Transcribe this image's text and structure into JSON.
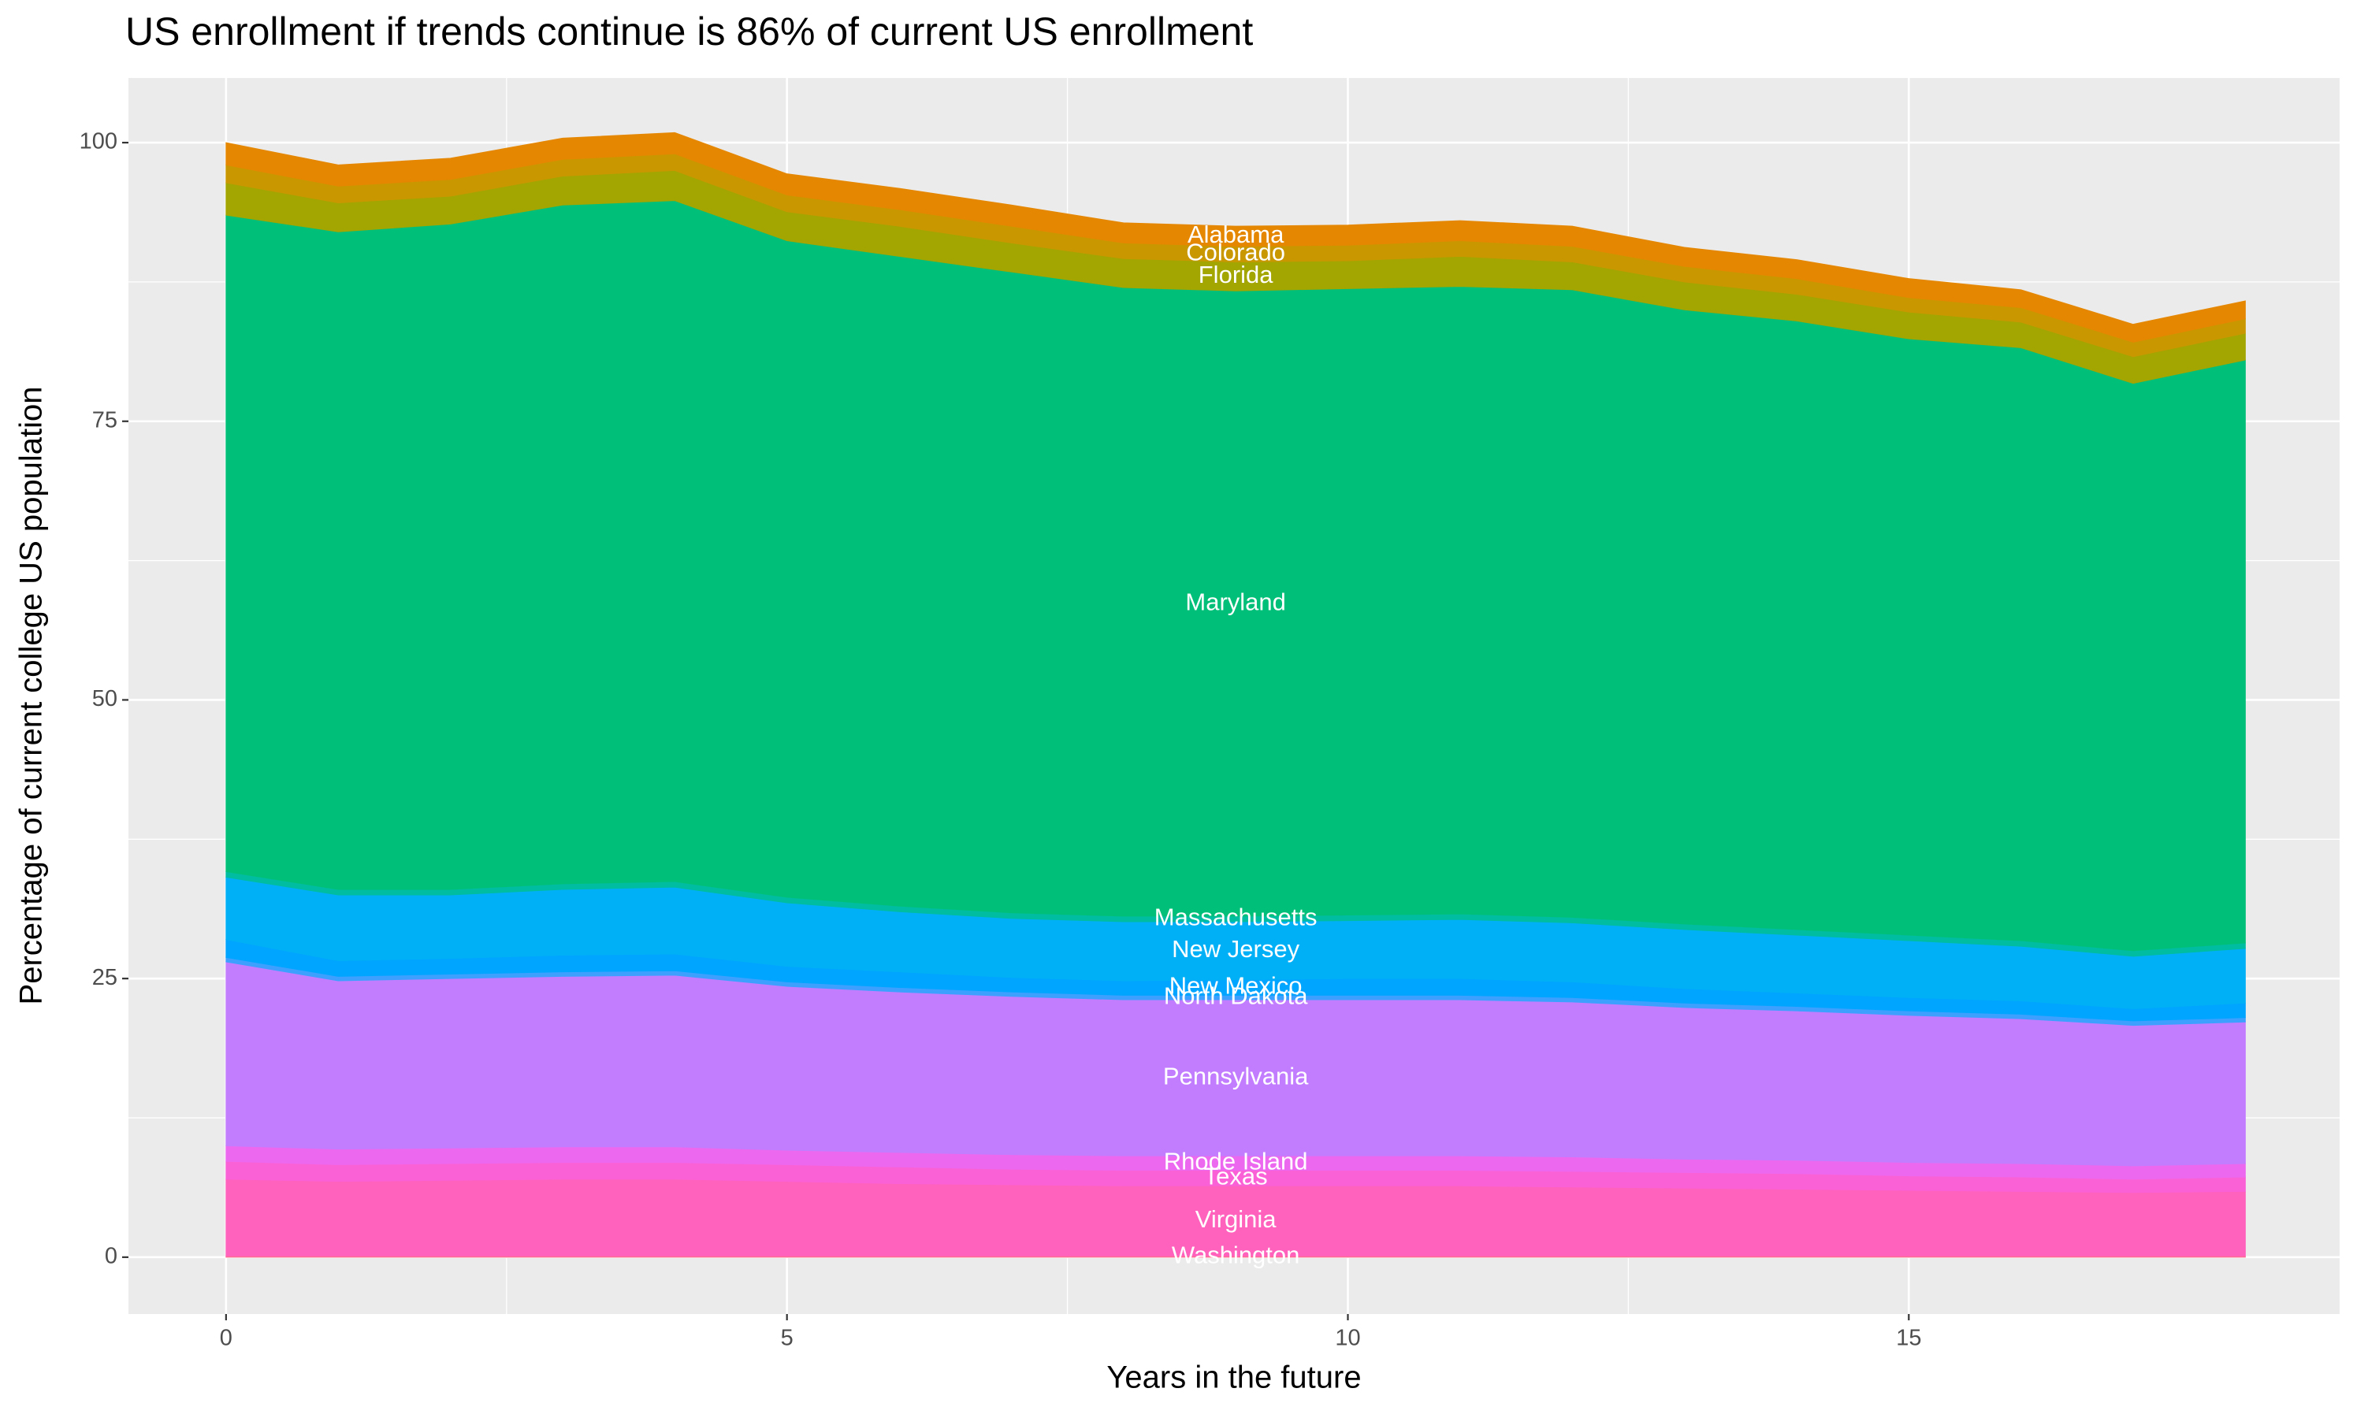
{
  "chart_data": {
    "type": "stacked-area",
    "title": "US enrollment if trends continue is 86% of current US enrollment",
    "x_label": "Years in the future",
    "y_label": "Percentage of current college US population",
    "x": [
      0,
      1,
      2,
      3,
      4,
      5,
      6,
      7,
      8,
      9,
      10,
      11,
      12,
      13,
      14,
      15,
      16,
      17,
      18
    ],
    "xlim": [
      -0.87,
      18.84
    ],
    "ylim": [
      -5.1,
      105.8
    ],
    "xticks": [
      0,
      5,
      10,
      15
    ],
    "yticks": [
      0,
      25,
      50,
      75,
      100
    ],
    "grid": true,
    "label_x": 9,
    "series": [
      {
        "name": "Alabama",
        "color": "#E58700",
        "values": [
          2.0,
          1.9,
          1.9,
          1.9,
          1.9,
          1.9,
          1.9,
          1.9,
          1.8,
          1.8,
          1.8,
          1.8,
          1.8,
          1.7,
          1.7,
          1.7,
          1.6,
          1.6,
          1.6
        ]
      },
      {
        "name": "Colorado",
        "color": "#C99800",
        "values": [
          1.6,
          1.5,
          1.5,
          1.5,
          1.5,
          1.5,
          1.5,
          1.5,
          1.4,
          1.4,
          1.4,
          1.4,
          1.4,
          1.4,
          1.4,
          1.3,
          1.3,
          1.3,
          1.3
        ]
      },
      {
        "name": "Florida",
        "color": "#A3A500",
        "values": [
          2.9,
          2.6,
          2.5,
          2.6,
          2.7,
          2.6,
          2.7,
          2.6,
          2.6,
          2.6,
          2.5,
          2.7,
          2.5,
          2.5,
          2.4,
          2.4,
          2.3,
          2.4,
          2.4
        ]
      },
      {
        "name": "Maryland",
        "color": "#00C079",
        "values": [
          58.9,
          59.0,
          59.7,
          60.9,
          61.1,
          58.9,
          58.3,
          57.5,
          56.4,
          56.1,
          56.2,
          56.3,
          56.3,
          55.1,
          54.6,
          53.5,
          53.2,
          50.9,
          52.3
        ]
      },
      {
        "name": "Massachusetts",
        "color": "#00BCA0",
        "values": [
          0.5,
          0.5,
          0.5,
          0.5,
          0.5,
          0.5,
          0.5,
          0.5,
          0.5,
          0.5,
          0.5,
          0.5,
          0.5,
          0.5,
          0.5,
          0.5,
          0.5,
          0.5,
          0.5
        ]
      },
      {
        "name": "New Jersey",
        "color": "#00B0F6",
        "values": [
          5.6,
          5.9,
          5.7,
          5.9,
          6.0,
          5.7,
          5.4,
          5.3,
          5.3,
          5.2,
          5.2,
          5.3,
          5.3,
          5.3,
          5.2,
          5.1,
          4.9,
          4.7,
          4.9
        ]
      },
      {
        "name": "New Mexico",
        "color": "#00A5FF",
        "values": [
          1.6,
          1.4,
          1.4,
          1.5,
          1.5,
          1.4,
          1.4,
          1.3,
          1.3,
          1.4,
          1.5,
          1.5,
          1.4,
          1.3,
          1.2,
          1.2,
          1.2,
          1.1,
          1.3
        ]
      },
      {
        "name": "North Dakota",
        "color": "#3DA0FF",
        "values": [
          0.4,
          0.4,
          0.4,
          0.4,
          0.4,
          0.4,
          0.4,
          0.4,
          0.4,
          0.4,
          0.4,
          0.4,
          0.4,
          0.4,
          0.4,
          0.4,
          0.4,
          0.4,
          0.4
        ]
      },
      {
        "name": "Pennsylvania",
        "color": "#C27DFF",
        "values": [
          16.5,
          15.1,
          15.2,
          15.3,
          15.4,
          14.7,
          14.4,
          14.2,
          14.0,
          14.0,
          14.0,
          14.0,
          13.9,
          13.6,
          13.4,
          13.2,
          13.0,
          12.6,
          12.7
        ]
      },
      {
        "name": "Rhode Island",
        "color": "#EC69EF",
        "values": [
          1.4,
          1.4,
          1.4,
          1.4,
          1.4,
          1.3,
          1.3,
          1.3,
          1.3,
          1.3,
          1.3,
          1.3,
          1.3,
          1.2,
          1.2,
          1.2,
          1.2,
          1.2,
          1.2
        ]
      },
      {
        "name": "Texas",
        "color": "#FB61D7",
        "values": [
          1.6,
          1.5,
          1.5,
          1.5,
          1.5,
          1.5,
          1.5,
          1.4,
          1.4,
          1.4,
          1.4,
          1.4,
          1.4,
          1.4,
          1.4,
          1.3,
          1.3,
          1.2,
          1.3
        ]
      },
      {
        "name": "Virginia",
        "color": "#FF62BC",
        "values": [
          6.9,
          6.7,
          6.8,
          6.9,
          6.9,
          6.7,
          6.5,
          6.4,
          6.3,
          6.3,
          6.3,
          6.3,
          6.2,
          6.1,
          6.0,
          5.9,
          5.8,
          5.7,
          5.8
        ]
      },
      {
        "name": "Washington",
        "color": "#FF6C91",
        "values": [
          0.1,
          0.1,
          0.1,
          0.1,
          0.1,
          0.1,
          0.1,
          0.1,
          0.1,
          0.1,
          0.1,
          0.1,
          0.1,
          0.1,
          0.1,
          0.1,
          0.1,
          0.1,
          0.1
        ]
      }
    ]
  }
}
